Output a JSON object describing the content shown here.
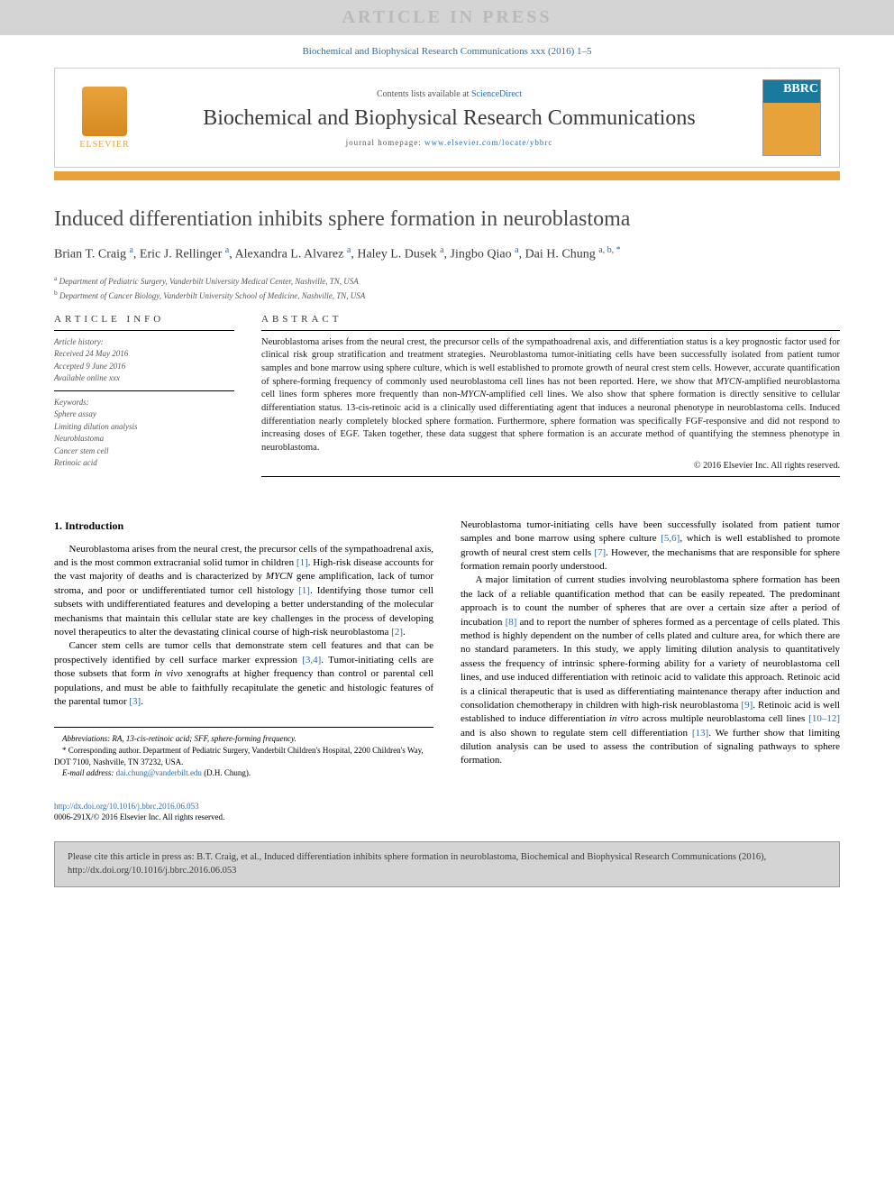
{
  "banner": "ARTICLE IN PRESS",
  "citation_top": "Biochemical and Biophysical Research Communications xxx (2016) 1–5",
  "header": {
    "contents_prefix": "Contents lists available at ",
    "contents_link": "ScienceDirect",
    "journal_name": "Biochemical and Biophysical Research Communications",
    "homepage_prefix": "journal homepage: ",
    "homepage_url": "www.elsevier.com/locate/ybbrc",
    "elsevier_label": "ELSEVIER",
    "cover_abbrev": "BBRC"
  },
  "article": {
    "title": "Induced differentiation inhibits sphere formation in neuroblastoma",
    "authors_html": "Brian T. Craig <sup>a</sup>, Eric J. Rellinger <sup>a</sup>, Alexandra L. Alvarez <sup>a</sup>, Haley L. Dusek <sup>a</sup>, Jingbo Qiao <sup>a</sup>, Dai H. Chung <sup>a, b, *</sup>",
    "affiliations": {
      "a": "Department of Pediatric Surgery, Vanderbilt University Medical Center, Nashville, TN, USA",
      "b": "Department of Cancer Biology, Vanderbilt University School of Medicine, Nashville, TN, USA"
    }
  },
  "info": {
    "heading": "ARTICLE INFO",
    "history_label": "Article history:",
    "received": "Received 24 May 2016",
    "accepted": "Accepted 9 June 2016",
    "available": "Available online xxx",
    "keywords_label": "Keywords:",
    "keywords": [
      "Sphere assay",
      "Limiting dilution analysis",
      "Neuroblastoma",
      "Cancer stem cell",
      "Retinoic acid"
    ]
  },
  "abstract": {
    "heading": "ABSTRACT",
    "text": "Neuroblastoma arises from the neural crest, the precursor cells of the sympathoadrenal axis, and differentiation status is a key prognostic factor used for clinical risk group stratification and treatment strategies. Neuroblastoma tumor-initiating cells have been successfully isolated from patient tumor samples and bone marrow using sphere culture, which is well established to promote growth of neural crest stem cells. However, accurate quantification of sphere-forming frequency of commonly used neuroblastoma cell lines has not been reported. Here, we show that MYCN-amplified neuroblastoma cell lines form spheres more frequently than non-MYCN-amplified cell lines. We also show that sphere formation is directly sensitive to cellular differentiation status. 13-cis-retinoic acid is a clinically used differentiating agent that induces a neuronal phenotype in neuroblastoma cells. Induced differentiation nearly completely blocked sphere formation. Furthermore, sphere formation was specifically FGF-responsive and did not respond to increasing doses of EGF. Taken together, these data suggest that sphere formation is an accurate method of quantifying the stemness phenotype in neuroblastoma.",
    "copyright": "© 2016 Elsevier Inc. All rights reserved."
  },
  "body": {
    "section1_heading": "1. Introduction",
    "p1": "Neuroblastoma arises from the neural crest, the precursor cells of the sympathoadrenal axis, and is the most common extracranial solid tumor in children [1]. High-risk disease accounts for the vast majority of deaths and is characterized by MYCN gene amplification, lack of tumor stroma, and poor or undifferentiated tumor cell histology [1]. Identifying those tumor cell subsets with undifferentiated features and developing a better understanding of the molecular mechanisms that maintain this cellular state are key challenges in the process of developing novel therapeutics to alter the devastating clinical course of high-risk neuroblastoma [2].",
    "p2": "Cancer stem cells are tumor cells that demonstrate stem cell features and that can be prospectively identified by cell surface marker expression [3,4]. Tumor-initiating cells are those subsets that form in vivo xenografts at higher frequency than control or parental cell populations, and must be able to faithfully recapitulate the genetic and histologic features of the parental tumor [3].",
    "p3": "Neuroblastoma tumor-initiating cells have been successfully isolated from patient tumor samples and bone marrow using sphere culture [5,6], which is well established to promote growth of neural crest stem cells [7]. However, the mechanisms that are responsible for sphere formation remain poorly understood.",
    "p4": "A major limitation of current studies involving neuroblastoma sphere formation has been the lack of a reliable quantification method that can be easily repeated. The predominant approach is to count the number of spheres that are over a certain size after a period of incubation [8] and to report the number of spheres formed as a percentage of cells plated. This method is highly dependent on the number of cells plated and culture area, for which there are no standard parameters. In this study, we apply limiting dilution analysis to quantitatively assess the frequency of intrinsic sphere-forming ability for a variety of neuroblastoma cell lines, and use induced differentiation with retinoic acid to validate this approach. Retinoic acid is a clinical therapeutic that is used as differentiating maintenance therapy after induction and consolidation chemotherapy in children with high-risk neuroblastoma [9]. Retinoic acid is well established to induce differentiation in vitro across multiple neuroblastoma cell lines [10–12] and is also shown to regulate stem cell differentiation [13]. We further show that limiting dilution analysis can be used to assess the contribution of signaling pathways to sphere formation."
  },
  "footnotes": {
    "abbrev": "Abbreviations: RA, 13-cis-retinoic acid; SFF, sphere-forming frequency.",
    "corresponding": "* Corresponding author. Department of Pediatric Surgery, Vanderbilt Children's Hospital, 2200 Children's Way, DOT 7100, Nashville, TN 37232, USA.",
    "email_label": "E-mail address: ",
    "email": "dai.chung@vanderbilt.edu",
    "email_suffix": " (D.H. Chung)."
  },
  "doi": {
    "url": "http://dx.doi.org/10.1016/j.bbrc.2016.06.053",
    "issn": "0006-291X/© 2016 Elsevier Inc. All rights reserved."
  },
  "cite_box": "Please cite this article in press as: B.T. Craig, et al., Induced differentiation inhibits sphere formation in neuroblastoma, Biochemical and Biophysical Research Communications (2016), http://dx.doi.org/10.1016/j.bbrc.2016.06.053",
  "colors": {
    "link": "#2b6cb0",
    "orange": "#e8a23a",
    "gray_banner": "#d4d4d4",
    "text_gray": "#555555"
  }
}
